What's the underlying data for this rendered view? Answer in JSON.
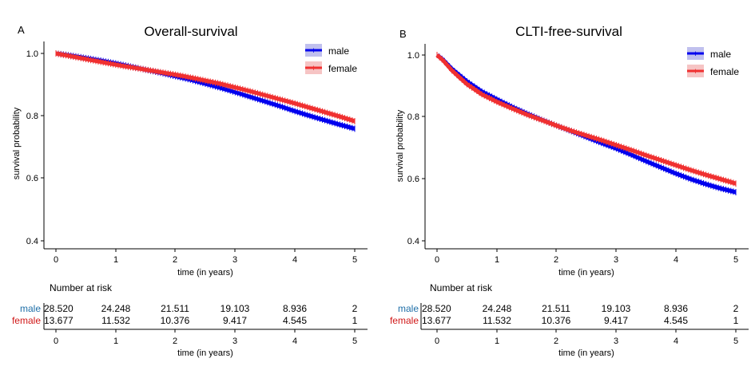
{
  "chart_data": [
    {
      "panel_label": "A",
      "type": "line",
      "title": "Overall-survival",
      "xlabel": "time (in years)",
      "ylabel": "survival probability",
      "xlim": [
        0,
        5
      ],
      "ylim": [
        0.4,
        1.0
      ],
      "x_ticks": [
        "0",
        "1",
        "2",
        "3",
        "4",
        "5"
      ],
      "y_ticks": [
        "0.4",
        "0.6",
        "0.8",
        "1.0"
      ],
      "legend_position": "top-right",
      "series": [
        {
          "name": "male",
          "color": "#0000ee",
          "band_color": "#b8b8ee",
          "points": [
            [
              0,
              1.0
            ],
            [
              0.25,
              0.993
            ],
            [
              0.5,
              0.985
            ],
            [
              0.75,
              0.977
            ],
            [
              1,
              0.968
            ],
            [
              1.25,
              0.958
            ],
            [
              1.5,
              0.948
            ],
            [
              1.75,
              0.938
            ],
            [
              2,
              0.927
            ],
            [
              2.25,
              0.916
            ],
            [
              2.5,
              0.903
            ],
            [
              2.75,
              0.89
            ],
            [
              3,
              0.876
            ],
            [
              3.25,
              0.861
            ],
            [
              3.5,
              0.846
            ],
            [
              3.75,
              0.831
            ],
            [
              4,
              0.815
            ],
            [
              4.25,
              0.8
            ],
            [
              4.5,
              0.786
            ],
            [
              4.75,
              0.772
            ],
            [
              5,
              0.759
            ]
          ]
        },
        {
          "name": "female",
          "color": "#f03030",
          "band_color": "#f6c4c4",
          "points": [
            [
              0,
              1.0
            ],
            [
              0.25,
              0.991
            ],
            [
              0.5,
              0.982
            ],
            [
              0.75,
              0.973
            ],
            [
              1,
              0.964
            ],
            [
              1.25,
              0.956
            ],
            [
              1.5,
              0.948
            ],
            [
              1.75,
              0.94
            ],
            [
              2,
              0.932
            ],
            [
              2.25,
              0.923
            ],
            [
              2.5,
              0.913
            ],
            [
              2.75,
              0.903
            ],
            [
              3,
              0.891
            ],
            [
              3.25,
              0.879
            ],
            [
              3.5,
              0.866
            ],
            [
              3.75,
              0.853
            ],
            [
              4,
              0.84
            ],
            [
              4.25,
              0.826
            ],
            [
              4.5,
              0.812
            ],
            [
              4.75,
              0.798
            ],
            [
              5,
              0.783
            ]
          ]
        }
      ],
      "risk_table": {
        "title": "Number at risk",
        "xlabel": "time (in years)",
        "x_ticks": [
          "0",
          "1",
          "2",
          "3",
          "4",
          "5"
        ],
        "rows": [
          {
            "label": "male",
            "color": "#1f6fa8",
            "values": [
              "28.520",
              "24.248",
              "21.511",
              "19.103",
              "8.936",
              "2"
            ]
          },
          {
            "label": "female",
            "color": "#d01818",
            "values": [
              "13.677",
              "11.532",
              "10.376",
              "9.417",
              "4.545",
              "1"
            ]
          }
        ]
      }
    },
    {
      "panel_label": "B",
      "type": "line",
      "title": "CLTI-free-survival",
      "xlabel": "time (in years)",
      "ylabel": "survival probability",
      "xlim": [
        0,
        5
      ],
      "ylim": [
        0.4,
        1.0
      ],
      "x_ticks": [
        "0",
        "1",
        "2",
        "3",
        "4",
        "5"
      ],
      "y_ticks": [
        "0.4",
        "0.6",
        "0.8",
        "1.0"
      ],
      "legend_position": "top-right",
      "series": [
        {
          "name": "male",
          "color": "#0000ee",
          "band_color": "#b8b8ee",
          "points": [
            [
              0,
              1.0
            ],
            [
              0.1,
              0.985
            ],
            [
              0.25,
              0.955
            ],
            [
              0.5,
              0.915
            ],
            [
              0.75,
              0.882
            ],
            [
              1,
              0.857
            ],
            [
              1.25,
              0.833
            ],
            [
              1.5,
              0.811
            ],
            [
              1.75,
              0.791
            ],
            [
              2,
              0.772
            ],
            [
              2.25,
              0.754
            ],
            [
              2.5,
              0.735
            ],
            [
              2.75,
              0.716
            ],
            [
              3,
              0.698
            ],
            [
              3.25,
              0.678
            ],
            [
              3.5,
              0.657
            ],
            [
              3.75,
              0.637
            ],
            [
              4,
              0.617
            ],
            [
              4.25,
              0.599
            ],
            [
              4.5,
              0.583
            ],
            [
              4.75,
              0.569
            ],
            [
              5,
              0.557
            ]
          ]
        },
        {
          "name": "female",
          "color": "#f03030",
          "band_color": "#f6c4c4",
          "points": [
            [
              0,
              1.0
            ],
            [
              0.1,
              0.983
            ],
            [
              0.25,
              0.95
            ],
            [
              0.5,
              0.906
            ],
            [
              0.75,
              0.873
            ],
            [
              1,
              0.849
            ],
            [
              1.25,
              0.828
            ],
            [
              1.5,
              0.808
            ],
            [
              1.75,
              0.79
            ],
            [
              2,
              0.772
            ],
            [
              2.25,
              0.755
            ],
            [
              2.5,
              0.74
            ],
            [
              2.75,
              0.725
            ],
            [
              3,
              0.709
            ],
            [
              3.25,
              0.693
            ],
            [
              3.5,
              0.676
            ],
            [
              3.75,
              0.66
            ],
            [
              4,
              0.644
            ],
            [
              4.25,
              0.628
            ],
            [
              4.5,
              0.613
            ],
            [
              4.75,
              0.599
            ],
            [
              5,
              0.585
            ]
          ]
        }
      ],
      "risk_table": {
        "title": "Number at risk",
        "xlabel": "time (in years)",
        "x_ticks": [
          "0",
          "1",
          "2",
          "3",
          "4",
          "5"
        ],
        "rows": [
          {
            "label": "male",
            "color": "#1f6fa8",
            "values": [
              "28.520",
              "24.248",
              "21.511",
              "19.103",
              "8.936",
              "2"
            ]
          },
          {
            "label": "female",
            "color": "#d01818",
            "values": [
              "13.677",
              "11.532",
              "10.376",
              "9.417",
              "4.545",
              "1"
            ]
          }
        ]
      }
    }
  ]
}
